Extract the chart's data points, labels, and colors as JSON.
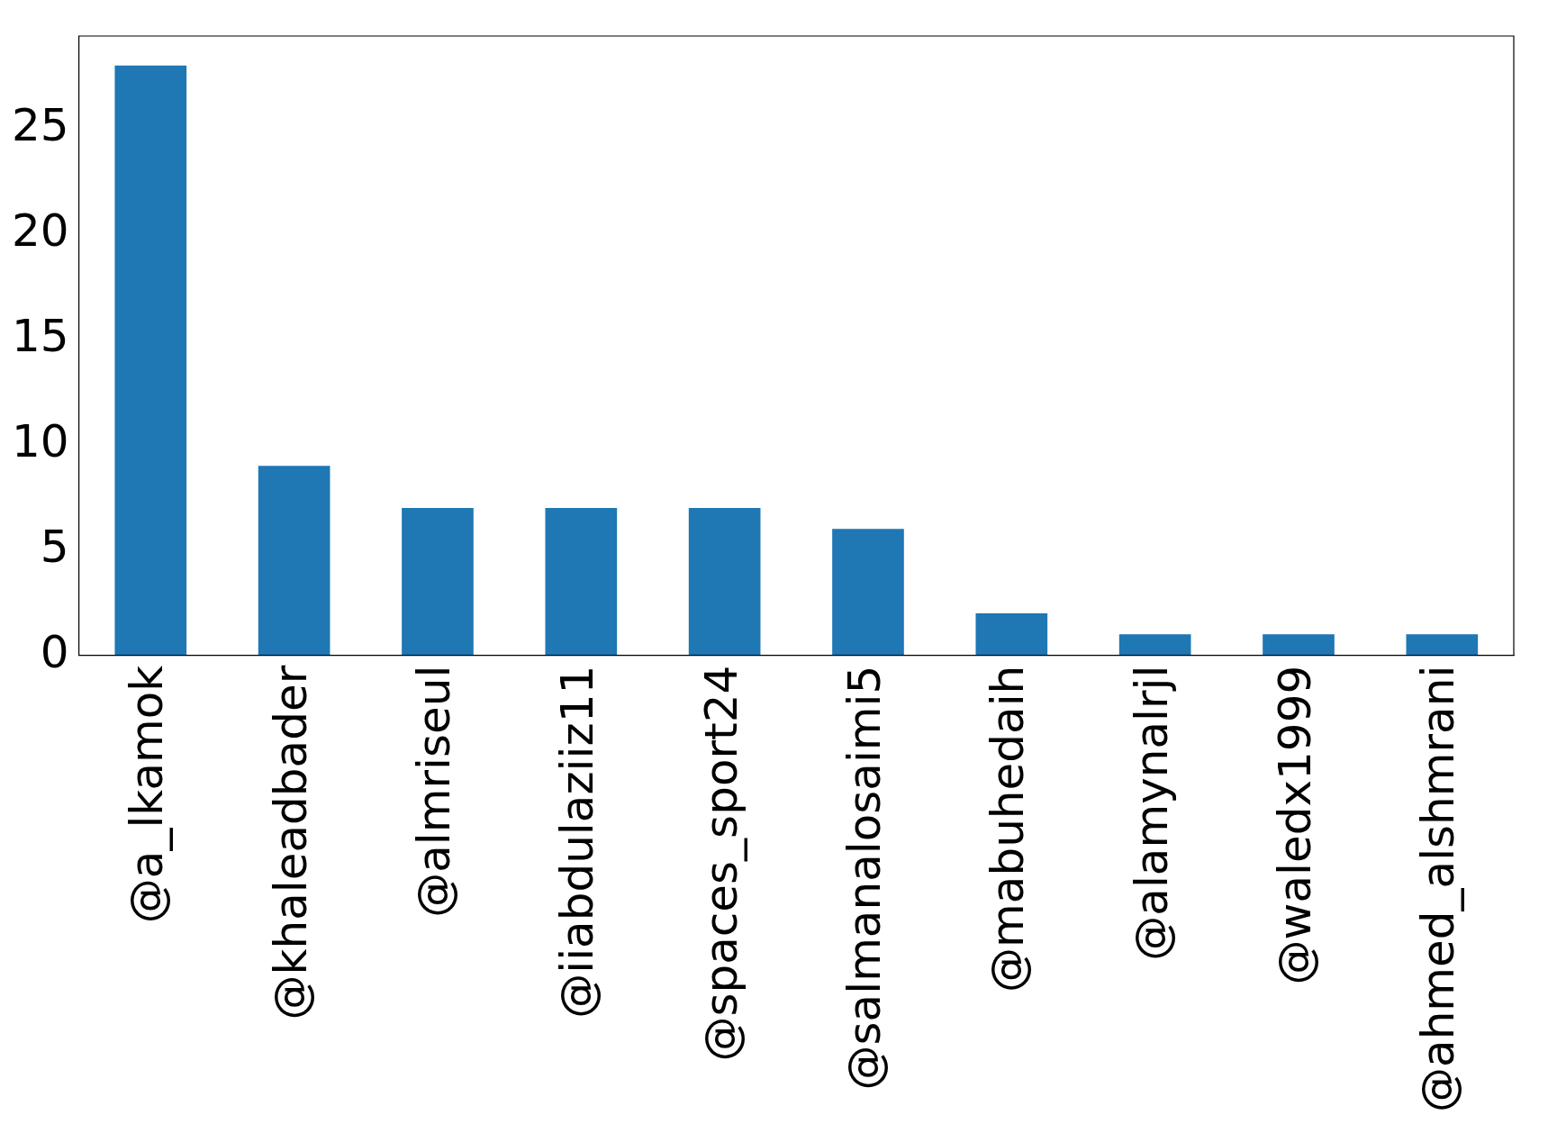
{
  "chart_data": {
    "type": "bar",
    "categories": [
      "@a_lkamok",
      "@khaleadbader",
      "@almriseul",
      "@iiabdulaziiz11",
      "@spaces_sport24",
      "@salmanalosaimi5",
      "@mabuhedaih",
      "@alamynalrjl",
      "@waledx1999",
      "@ahmed_alshmrani"
    ],
    "values": [
      28,
      9,
      7,
      7,
      7,
      6,
      2,
      1,
      1,
      1
    ],
    "color": "#1f77b4",
    "ylim": [
      0,
      29.4
    ],
    "yticks": [
      0,
      5,
      10,
      15,
      20,
      25
    ],
    "grid": false,
    "legend": false
  }
}
